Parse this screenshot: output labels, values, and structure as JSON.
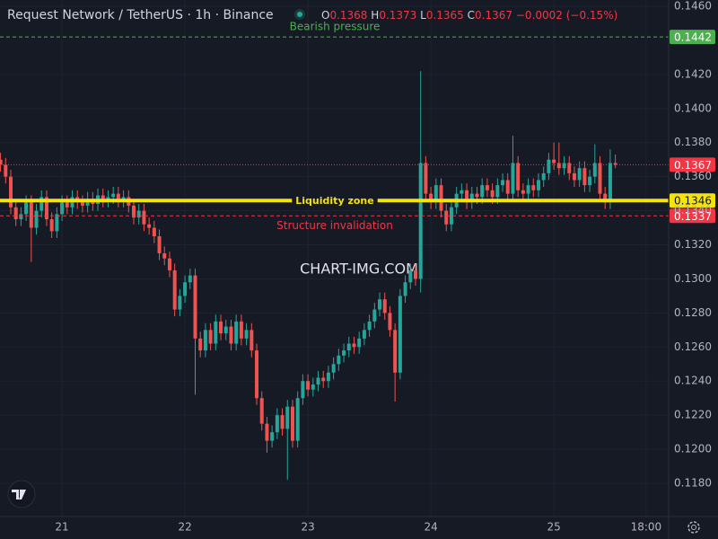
{
  "header": {
    "symbol": "Request Network / TetherUS · 1h · Binance",
    "ohlc": [
      {
        "letter": "O",
        "value": "0.1368"
      },
      {
        "letter": "H",
        "value": "0.1373"
      },
      {
        "letter": "L",
        "value": "0.1365"
      },
      {
        "letter": "C",
        "value": "0.1367"
      }
    ],
    "change": "−0.0002 (−0.15%)"
  },
  "watermark": "CHART-IMG.COM",
  "chart_data": {
    "type": "candlestick",
    "up_color": "#26a69a",
    "down_color": "#ef5350",
    "open": [
      0.137,
      0.1367,
      0.136,
      0.1342,
      0.1335,
      0.1338,
      0.1345,
      0.133,
      0.134,
      0.1348,
      0.1335,
      0.1328,
      0.1338,
      0.1345,
      0.1342,
      0.1348,
      0.1345,
      0.1343,
      0.1347,
      0.1344,
      0.1349,
      0.1346,
      0.1348,
      0.135,
      0.1346,
      0.1348,
      0.1343,
      0.1336,
      0.134,
      0.1332,
      0.133,
      0.1325,
      0.1315,
      0.1312,
      0.1305,
      0.1282,
      0.129,
      0.1298,
      0.1302,
      0.1265,
      0.1258,
      0.127,
      0.1262,
      0.1275,
      0.1268,
      0.1272,
      0.1262,
      0.1275,
      0.1265,
      0.127,
      0.1258,
      0.123,
      0.1215,
      0.1205,
      0.121,
      0.122,
      0.1212,
      0.1225,
      0.1205,
      0.123,
      0.124,
      0.1235,
      0.1238,
      0.1242,
      0.124,
      0.1245,
      0.125,
      0.1255,
      0.1258,
      0.1262,
      0.126,
      0.1265,
      0.127,
      0.1275,
      0.1282,
      0.1288,
      0.128,
      0.127,
      0.1245,
      0.129,
      0.1298,
      0.1305,
      0.13,
      0.1368,
      0.135,
      0.1345,
      0.1355,
      0.134,
      0.1332,
      0.1342,
      0.135,
      0.1352,
      0.1345,
      0.135,
      0.1348,
      0.1355,
      0.1352,
      0.1348,
      0.1355,
      0.1358,
      0.135,
      0.1368,
      0.1352,
      0.135,
      0.1355,
      0.1352,
      0.1358,
      0.1362,
      0.137,
      0.1368,
      0.1365,
      0.1368,
      0.1362,
      0.1358,
      0.1365,
      0.1355,
      0.136,
      0.1368,
      0.135,
      0.1345,
      0.1368
    ],
    "high": [
      0.1374,
      0.1371,
      0.1364,
      0.1346,
      0.1342,
      0.1349,
      0.1349,
      0.1344,
      0.1352,
      0.1352,
      0.1339,
      0.1342,
      0.1349,
      0.1349,
      0.1352,
      0.1352,
      0.1349,
      0.1351,
      0.1351,
      0.1353,
      0.1353,
      0.1352,
      0.1354,
      0.1354,
      0.1352,
      0.1352,
      0.1347,
      0.1344,
      0.1344,
      0.1336,
      0.1334,
      0.1329,
      0.1319,
      0.1316,
      0.1309,
      0.1294,
      0.1302,
      0.1306,
      0.1306,
      0.1269,
      0.1274,
      0.1274,
      0.1279,
      0.1279,
      0.1276,
      0.1276,
      0.1279,
      0.1279,
      0.1274,
      0.1274,
      0.1262,
      0.1234,
      0.1219,
      0.1214,
      0.1224,
      0.1224,
      0.1229,
      0.1229,
      0.1234,
      0.1244,
      0.1244,
      0.1242,
      0.1246,
      0.1246,
      0.1249,
      0.1254,
      0.1259,
      0.1262,
      0.1266,
      0.1266,
      0.1269,
      0.1274,
      0.1279,
      0.1286,
      0.1292,
      0.1292,
      0.1284,
      0.1274,
      0.1294,
      0.1302,
      0.1309,
      0.1309,
      0.1422,
      0.1372,
      0.1354,
      0.1359,
      0.1359,
      0.1344,
      0.1346,
      0.1354,
      0.1356,
      0.1356,
      0.1354,
      0.1354,
      0.1359,
      0.1359,
      0.1356,
      0.1359,
      0.1362,
      0.1362,
      0.1384,
      0.1372,
      0.1356,
      0.1359,
      0.1359,
      0.1362,
      0.1366,
      0.1374,
      0.138,
      0.138,
      0.1372,
      0.1372,
      0.1366,
      0.1369,
      0.1369,
      0.1364,
      0.1379,
      0.1372,
      0.1354,
      0.1376,
      0.1373
    ],
    "low": [
      0.1363,
      0.1356,
      0.1338,
      0.1331,
      0.1331,
      0.1334,
      0.131,
      0.1326,
      0.1336,
      0.1331,
      0.1324,
      0.1324,
      0.1334,
      0.1338,
      0.1338,
      0.1341,
      0.1339,
      0.1339,
      0.134,
      0.134,
      0.1342,
      0.1342,
      0.1344,
      0.1342,
      0.1342,
      0.1339,
      0.1332,
      0.1332,
      0.1328,
      0.1326,
      0.1321,
      0.1311,
      0.1308,
      0.1301,
      0.1278,
      0.1278,
      0.1286,
      0.1294,
      0.1232,
      0.1254,
      0.1254,
      0.1258,
      0.1258,
      0.1264,
      0.1264,
      0.1258,
      0.1258,
      0.1261,
      0.1261,
      0.1254,
      0.1226,
      0.1211,
      0.1198,
      0.1201,
      0.1206,
      0.1208,
      0.1182,
      0.1201,
      0.1201,
      0.1226,
      0.1231,
      0.1231,
      0.1234,
      0.1236,
      0.1236,
      0.1241,
      0.1246,
      0.1251,
      0.1254,
      0.1256,
      0.1256,
      0.1261,
      0.1266,
      0.1271,
      0.1278,
      0.1276,
      0.1266,
      0.1228,
      0.1241,
      0.1286,
      0.1294,
      0.1296,
      0.1292,
      0.1346,
      0.1341,
      0.1341,
      0.1336,
      0.1328,
      0.1328,
      0.1338,
      0.1346,
      0.1341,
      0.1341,
      0.1344,
      0.1344,
      0.1348,
      0.1344,
      0.1344,
      0.1351,
      0.1346,
      0.1346,
      0.1348,
      0.1346,
      0.1346,
      0.1348,
      0.1348,
      0.1354,
      0.1358,
      0.1364,
      0.1361,
      0.1361,
      0.1358,
      0.1354,
      0.1354,
      0.1351,
      0.1351,
      0.1356,
      0.1346,
      0.1341,
      0.1341,
      0.1365
    ],
    "close": [
      0.1367,
      0.136,
      0.1342,
      0.1335,
      0.1338,
      0.1345,
      0.133,
      0.134,
      0.1348,
      0.1335,
      0.1328,
      0.1338,
      0.1345,
      0.1342,
      0.1348,
      0.1345,
      0.1343,
      0.1347,
      0.1344,
      0.1349,
      0.1346,
      0.1348,
      0.135,
      0.1346,
      0.1348,
      0.1343,
      0.1336,
      0.134,
      0.1332,
      0.133,
      0.1325,
      0.1315,
      0.1312,
      0.1305,
      0.1282,
      0.129,
      0.1298,
      0.1302,
      0.1265,
      0.1258,
      0.127,
      0.1262,
      0.1275,
      0.1268,
      0.1272,
      0.1262,
      0.1275,
      0.1265,
      0.127,
      0.1258,
      0.123,
      0.1215,
      0.1205,
      0.121,
      0.122,
      0.1212,
      0.1225,
      0.1205,
      0.123,
      0.124,
      0.1235,
      0.1238,
      0.1242,
      0.124,
      0.1245,
      0.125,
      0.1255,
      0.1258,
      0.1262,
      0.126,
      0.1265,
      0.127,
      0.1275,
      0.1282,
      0.1288,
      0.128,
      0.127,
      0.1245,
      0.129,
      0.1298,
      0.1305,
      0.13,
      0.1368,
      0.135,
      0.1345,
      0.1355,
      0.134,
      0.1332,
      0.1342,
      0.135,
      0.1352,
      0.1345,
      0.135,
      0.1348,
      0.1355,
      0.1352,
      0.1348,
      0.1355,
      0.1358,
      0.135,
      0.1368,
      0.1352,
      0.135,
      0.1355,
      0.1352,
      0.1358,
      0.1362,
      0.137,
      0.1368,
      0.1365,
      0.1368,
      0.1362,
      0.1358,
      0.1365,
      0.1355,
      0.136,
      0.1368,
      0.135,
      0.1345,
      0.1368,
      0.1367
    ],
    "xlim": [
      -0.1,
      130.4
    ],
    "xticks": [
      {
        "value": 12,
        "label": "21"
      },
      {
        "value": 36,
        "label": "22"
      },
      {
        "value": 60,
        "label": "23"
      },
      {
        "value": 84,
        "label": "24"
      },
      {
        "value": 108,
        "label": "25"
      },
      {
        "value": 126,
        "label": "18:00"
      }
    ],
    "ylim": [
      0.11605,
      0.14637
    ],
    "yticks": [
      {
        "value": 0.118,
        "label": "0.1180"
      },
      {
        "value": 0.12,
        "label": "0.1200"
      },
      {
        "value": 0.122,
        "label": "0.1220"
      },
      {
        "value": 0.124,
        "label": "0.1240"
      },
      {
        "value": 0.126,
        "label": "0.1260"
      },
      {
        "value": 0.128,
        "label": "0.1280"
      },
      {
        "value": 0.13,
        "label": "0.1300"
      },
      {
        "value": 0.132,
        "label": "0.1320"
      },
      {
        "value": 0.134,
        "label": "0.1340"
      },
      {
        "value": 0.136,
        "label": "0.1360"
      },
      {
        "value": 0.138,
        "label": "0.1380"
      },
      {
        "value": 0.14,
        "label": "0.1400"
      },
      {
        "value": 0.142,
        "label": "0.1420"
      },
      {
        "value": 0.146,
        "label": "0.1460"
      }
    ],
    "grid": true,
    "levels": [
      {
        "name": "Bearish pressure",
        "value": 0.1442,
        "label": "0.1442",
        "color": "#4caf50",
        "style": "dashed"
      },
      {
        "name": "Liquidity zone",
        "value": 0.1346,
        "label": "0.1346",
        "color": "#f5e30c",
        "style": "solid"
      },
      {
        "name": "Structure invalidation",
        "value": 0.1337,
        "label": "0.1337",
        "color": "#f23645",
        "style": "dashed"
      }
    ],
    "last_price": {
      "value": 0.1367,
      "label": "0.1367",
      "color": "#f23645"
    }
  }
}
